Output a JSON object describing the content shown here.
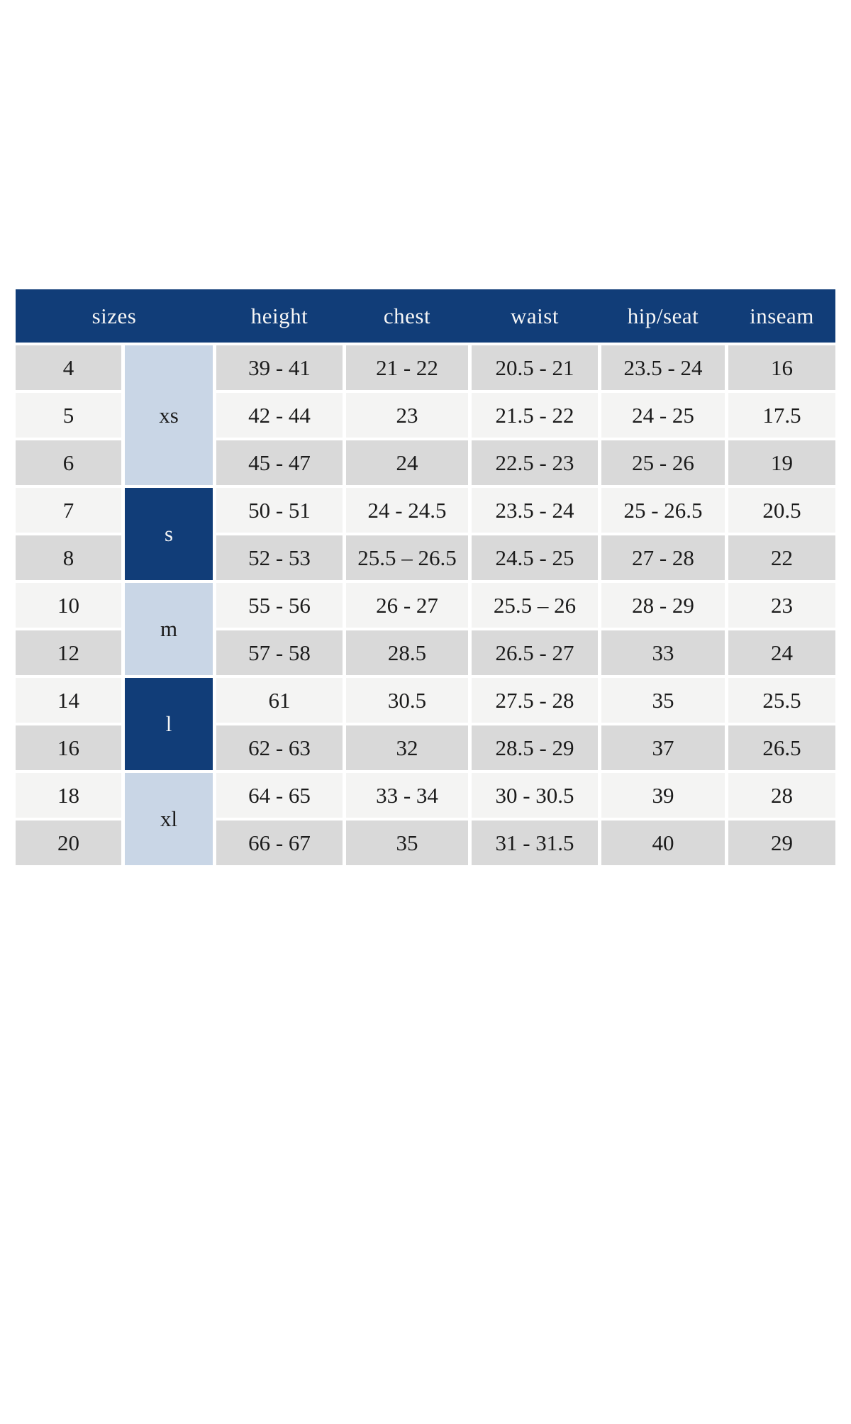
{
  "colors": {
    "header_bg": "#113d78",
    "header_text": "#f6f6f6",
    "group_light_bg": "#c9d6e6",
    "group_dark_bg": "#113d78",
    "row_dark": "#d9d9d9",
    "row_light": "#f4f4f3",
    "body_text": "#1b1b1b",
    "page_bg": "#ffffff"
  },
  "chart_data": {
    "type": "table",
    "columns": [
      "sizes",
      "height",
      "chest",
      "waist",
      "hip/seat",
      "inseam"
    ],
    "size_groups": [
      {
        "label": "xs",
        "tone": "light",
        "row_span": 3,
        "sizes": [
          "4",
          "5",
          "6"
        ]
      },
      {
        "label": "s",
        "tone": "dark",
        "row_span": 2,
        "sizes": [
          "7",
          "8"
        ]
      },
      {
        "label": "m",
        "tone": "light",
        "row_span": 2,
        "sizes": [
          "10",
          "12"
        ]
      },
      {
        "label": "l",
        "tone": "dark",
        "row_span": 2,
        "sizes": [
          "14",
          "16"
        ]
      },
      {
        "label": "xl",
        "tone": "light",
        "row_span": 2,
        "sizes": [
          "18",
          "20"
        ]
      }
    ],
    "rows": [
      [
        "4",
        "39 - 41",
        "21 - 22",
        "20.5 - 21",
        "23.5 - 24",
        "16"
      ],
      [
        "5",
        "42 - 44",
        "23",
        "21.5 - 22",
        "24 - 25",
        "17.5"
      ],
      [
        "6",
        "45 - 47",
        "24",
        "22.5 - 23",
        "25 - 26",
        "19"
      ],
      [
        "7",
        "50 - 51",
        "24 - 24.5",
        "23.5 - 24",
        "25 - 26.5",
        "20.5"
      ],
      [
        "8",
        "52 - 53",
        "25.5 – 26.5",
        "24.5 - 25",
        "27 - 28",
        "22"
      ],
      [
        "10",
        "55 - 56",
        "26 - 27",
        "25.5 – 26",
        "28 - 29",
        "23"
      ],
      [
        "12",
        "57 - 58",
        "28.5",
        "26.5 - 27",
        "33",
        "24"
      ],
      [
        "14",
        "61",
        "30.5",
        "27.5 - 28",
        "35",
        "25.5"
      ],
      [
        "16",
        "62 - 63",
        "32",
        "28.5 - 29",
        "37",
        "26.5"
      ],
      [
        "18",
        "64 - 65",
        "33 - 34",
        "30 - 30.5",
        "39",
        "28"
      ],
      [
        "20",
        "66 - 67",
        "35",
        "31 - 31.5",
        "40",
        "29"
      ]
    ]
  }
}
